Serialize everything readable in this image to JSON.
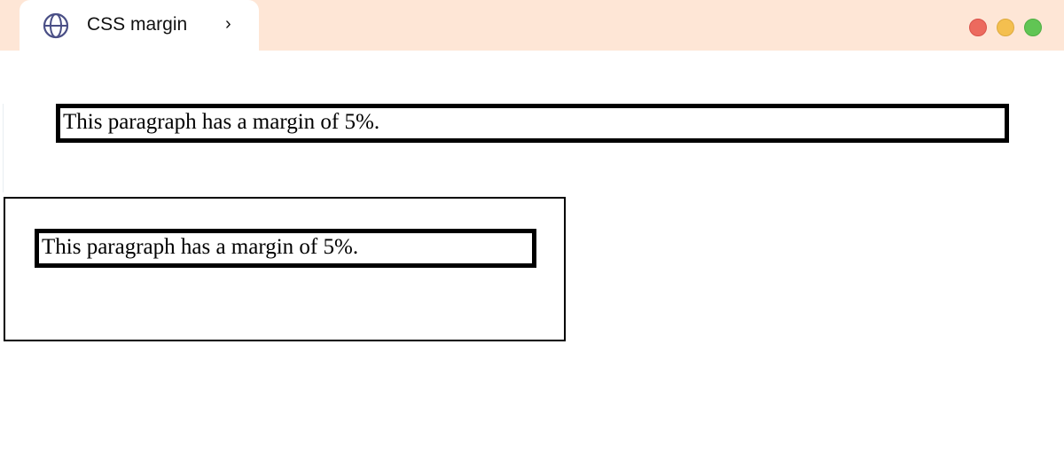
{
  "tab": {
    "title": "CSS margin",
    "chevron": "›",
    "icon": "globe-icon"
  },
  "window_controls": {
    "close_color": "#ec6a5e",
    "minimize_color": "#f4bf4f",
    "maximize_color": "#61c554"
  },
  "colors": {
    "topbar": "#fee6d6",
    "globe": "#4a4f86"
  },
  "content": {
    "paragraph1": "This paragraph has a margin of 5%.",
    "paragraph2": "This paragraph has a margin of 5%."
  }
}
